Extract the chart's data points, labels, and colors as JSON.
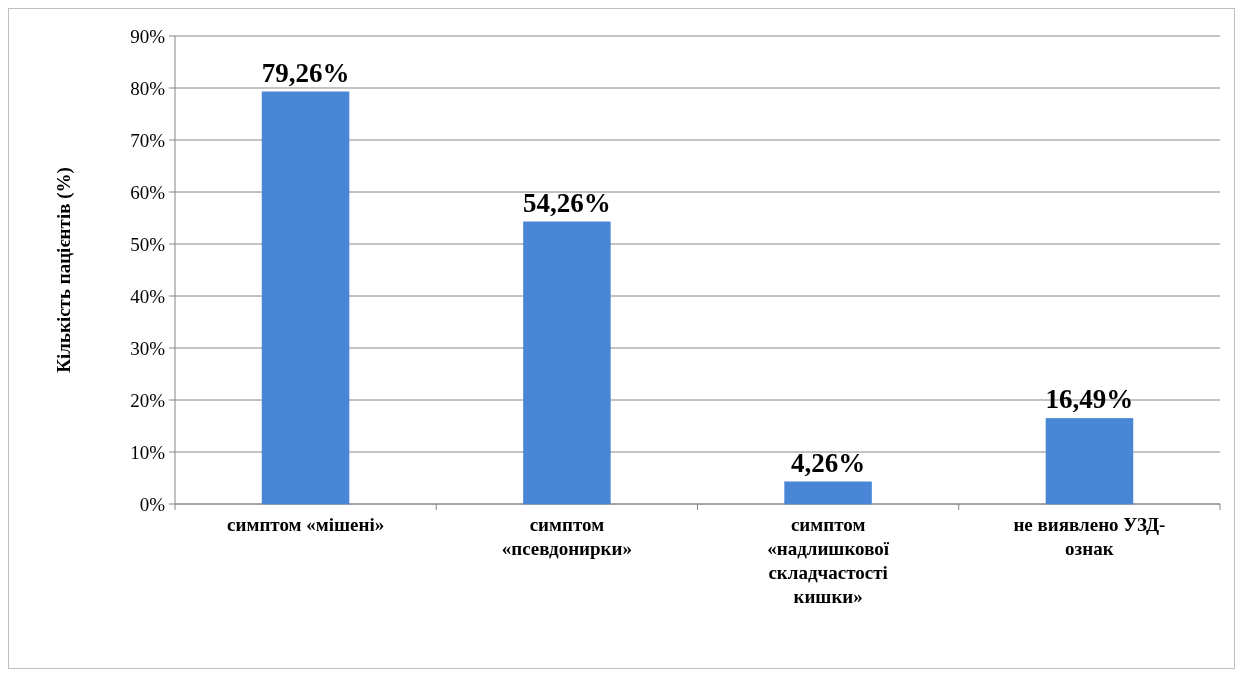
{
  "chart_data": {
    "type": "bar",
    "ylabel": "Кількість пацієнтів (%)",
    "categories": [
      "симптом «мішені»",
      "симптом «псевдонирки»",
      "симптом «надлишкової складчастості кишки»",
      "не виявлено УЗД-ознак"
    ],
    "values": [
      79.26,
      54.26,
      4.26,
      16.49
    ],
    "value_labels": [
      "79,26%",
      "54,26%",
      "4,26%",
      "16,49%"
    ],
    "color": "#4a86d6",
    "ylim": [
      0,
      90
    ],
    "yticks": [
      {
        "value": 0,
        "label": "0%"
      },
      {
        "value": 10,
        "label": "10%"
      },
      {
        "value": 20,
        "label": "20%"
      },
      {
        "value": 30,
        "label": "30%"
      },
      {
        "value": 40,
        "label": "40%"
      },
      {
        "value": 50,
        "label": "50%"
      },
      {
        "value": 60,
        "label": "60%"
      },
      {
        "value": 70,
        "label": "70%"
      },
      {
        "value": 80,
        "label": "80%"
      },
      {
        "value": 90,
        "label": "90%"
      }
    ],
    "grid": "y"
  }
}
